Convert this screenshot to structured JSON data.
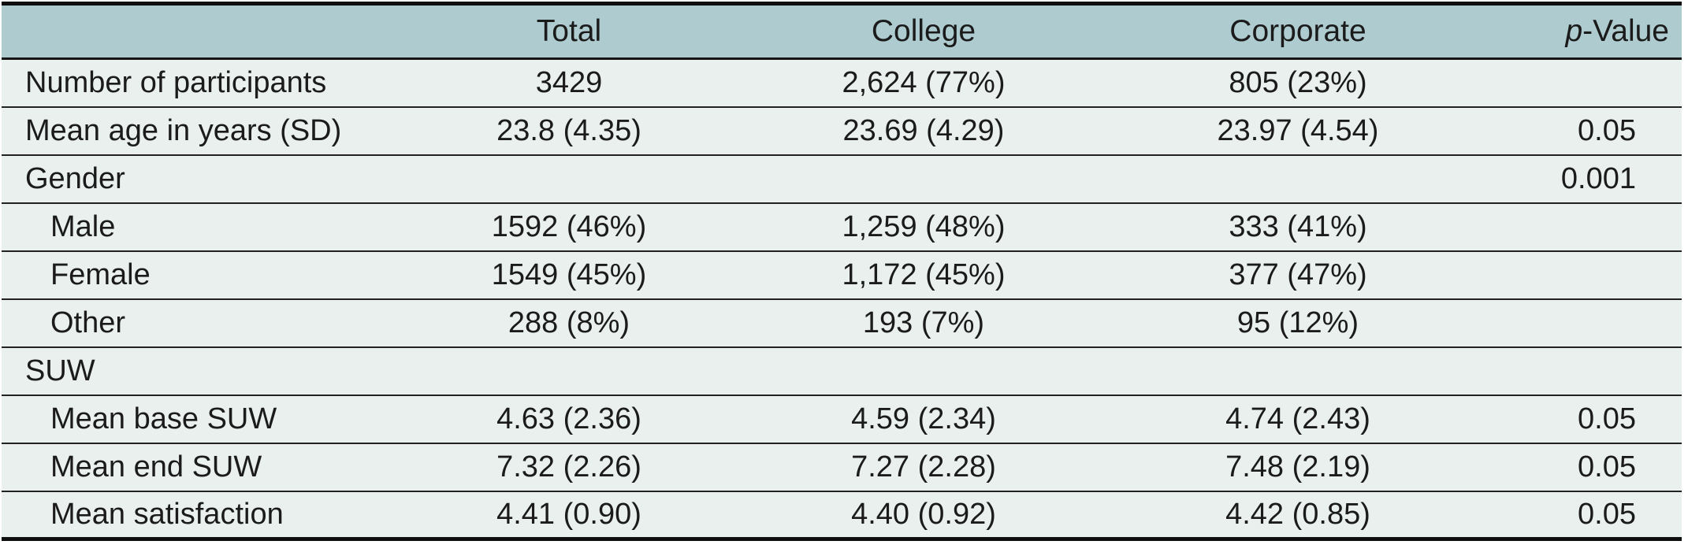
{
  "table": {
    "columns": [
      {
        "label": ""
      },
      {
        "label": "Total"
      },
      {
        "label": "College"
      },
      {
        "label": "Corporate"
      },
      {
        "label_italic": "p",
        "label_rest": "-Value"
      }
    ],
    "rows": [
      {
        "label": "Number of participants",
        "indent": false,
        "total": "3429",
        "college": "2,624 (77%)",
        "corporate": "805 (23%)",
        "p": ""
      },
      {
        "label": "Mean age in years (SD)",
        "indent": false,
        "total": "23.8 (4.35)",
        "college": "23.69 (4.29)",
        "corporate": "23.97 (4.54)",
        "p": "0.05"
      },
      {
        "label": "Gender",
        "indent": false,
        "total": "",
        "college": "",
        "corporate": "",
        "p": "0.001"
      },
      {
        "label": "Male",
        "indent": true,
        "total": "1592 (46%)",
        "college": "1,259 (48%)",
        "corporate": "333 (41%)",
        "p": ""
      },
      {
        "label": "Female",
        "indent": true,
        "total": "1549 (45%)",
        "college": "1,172 (45%)",
        "corporate": "377 (47%)",
        "p": ""
      },
      {
        "label": "Other",
        "indent": true,
        "total": "288 (8%)",
        "college": "193 (7%)",
        "corporate": "95 (12%)",
        "p": ""
      },
      {
        "label": "SUW",
        "indent": false,
        "total": "",
        "college": "",
        "corporate": "",
        "p": ""
      },
      {
        "label": "Mean base SUW",
        "indent": true,
        "total": "4.63 (2.36)",
        "college": "4.59 (2.34)",
        "corporate": "4.74 (2.43)",
        "p": "0.05"
      },
      {
        "label": "Mean end SUW",
        "indent": true,
        "total": "7.32 (2.26)",
        "college": "7.27 (2.28)",
        "corporate": "7.48 (2.19)",
        "p": "0.05"
      },
      {
        "label": "Mean satisfaction",
        "indent": true,
        "total": "4.41 (0.90)",
        "college": "4.40 (0.92)",
        "corporate": "4.42 (0.85)",
        "p": "0.05"
      }
    ]
  },
  "colors": {
    "header_bg": "#aecbcf",
    "row_bg": "#e9f0ee",
    "rule": "#222222",
    "heavy_rule": "#0f0f0f",
    "text": "#1b1b1b"
  }
}
